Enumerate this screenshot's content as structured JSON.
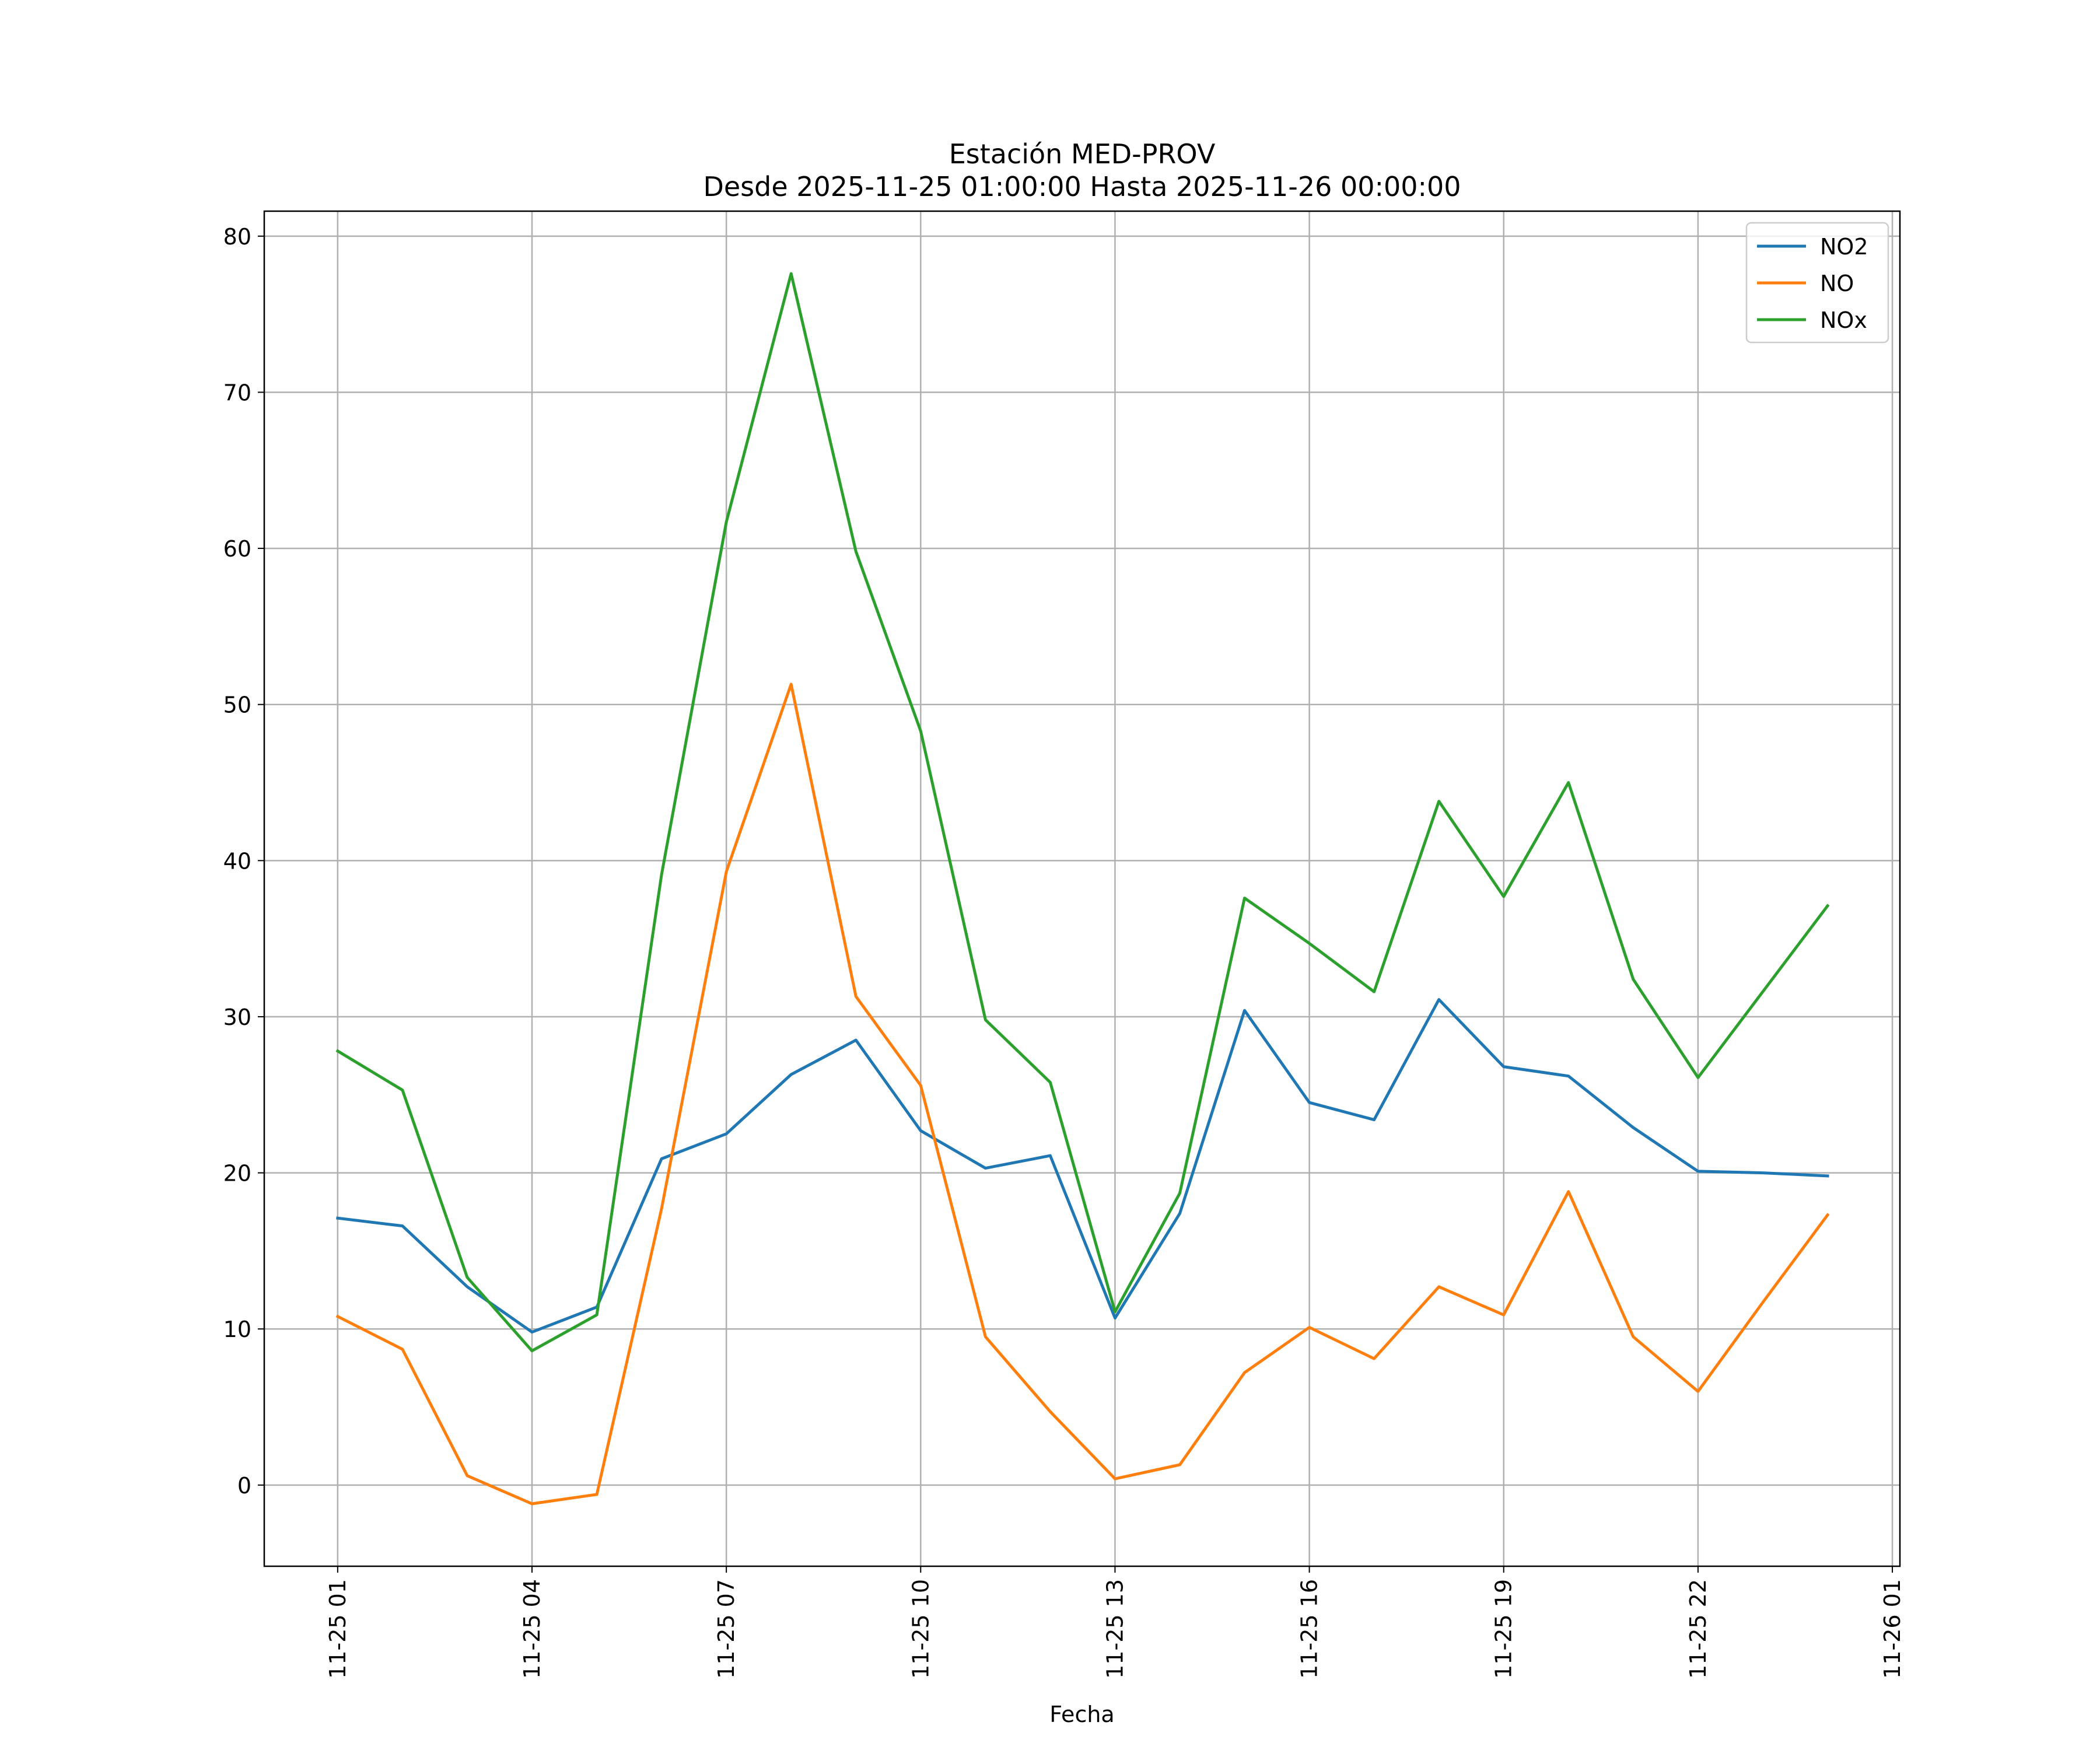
{
  "chart_data": {
    "type": "line",
    "title": "Estación MED-PROV",
    "subtitle": "Desde 2025-11-25 01:00:00 Hasta 2025-11-26 00:00:00",
    "xlabel": "Fecha",
    "ylabel": "",
    "x": [
      "2025-11-25 01:00",
      "2025-11-25 02:00",
      "2025-11-25 03:00",
      "2025-11-25 04:00",
      "2025-11-25 05:00",
      "2025-11-25 06:00",
      "2025-11-25 07:00",
      "2025-11-25 08:00",
      "2025-11-25 09:00",
      "2025-11-25 10:00",
      "2025-11-25 11:00",
      "2025-11-25 12:00",
      "2025-11-25 13:00",
      "2025-11-25 14:00",
      "2025-11-25 15:00",
      "2025-11-25 16:00",
      "2025-11-25 17:00",
      "2025-11-25 18:00",
      "2025-11-25 19:00",
      "2025-11-25 20:00",
      "2025-11-25 21:00",
      "2025-11-25 22:00",
      "2025-11-25 23:00",
      "2025-11-26 00:00"
    ],
    "series": [
      {
        "name": "NO2",
        "color": "#1f77b4",
        "values": [
          17.1,
          16.6,
          12.7,
          9.8,
          11.4,
          20.9,
          22.5,
          26.3,
          28.5,
          22.7,
          20.3,
          21.1,
          10.7,
          17.4,
          30.4,
          24.5,
          23.4,
          31.1,
          26.8,
          26.2,
          22.9,
          20.1,
          20.0,
          19.8
        ]
      },
      {
        "name": "NO",
        "color": "#ff7f0e",
        "values": [
          10.8,
          8.7,
          0.6,
          -1.2,
          -0.6,
          17.7,
          39.3,
          51.3,
          31.3,
          25.6,
          9.5,
          4.7,
          0.4,
          1.3,
          7.2,
          10.1,
          8.1,
          12.7,
          10.9,
          18.8,
          9.5,
          6.0,
          11.7,
          17.3
        ]
      },
      {
        "name": "NOx",
        "color": "#2ca02c",
        "values": [
          27.8,
          25.3,
          13.3,
          8.6,
          10.9,
          39.1,
          61.7,
          77.6,
          59.8,
          48.3,
          29.8,
          25.8,
          11.1,
          18.7,
          37.6,
          34.7,
          31.6,
          43.8,
          37.7,
          45.0,
          32.4,
          26.1,
          31.6,
          37.1
        ]
      }
    ],
    "xticks": [
      "11-25 01",
      "11-25 04",
      "11-25 07",
      "11-25 10",
      "11-25 13",
      "11-25 16",
      "11-25 19",
      "11-25 22",
      "11-26 01"
    ],
    "xtick_values": [
      "2025-11-25 01:00",
      "2025-11-25 04:00",
      "2025-11-25 07:00",
      "2025-11-25 10:00",
      "2025-11-25 13:00",
      "2025-11-25 16:00",
      "2025-11-25 19:00",
      "2025-11-25 22:00",
      "2025-11-26 01:00"
    ],
    "xlim": [
      "2025-11-24 23:52",
      "2025-11-26 01:07"
    ],
    "yticks": [
      0,
      10,
      20,
      30,
      40,
      50,
      60,
      70,
      80
    ],
    "ytick_labels": [
      "0",
      "10",
      "20",
      "30",
      "40",
      "50",
      "60",
      "70",
      "80"
    ],
    "ylim": [
      -5.2,
      81.6
    ],
    "grid": true,
    "legend_position": "top-right"
  }
}
